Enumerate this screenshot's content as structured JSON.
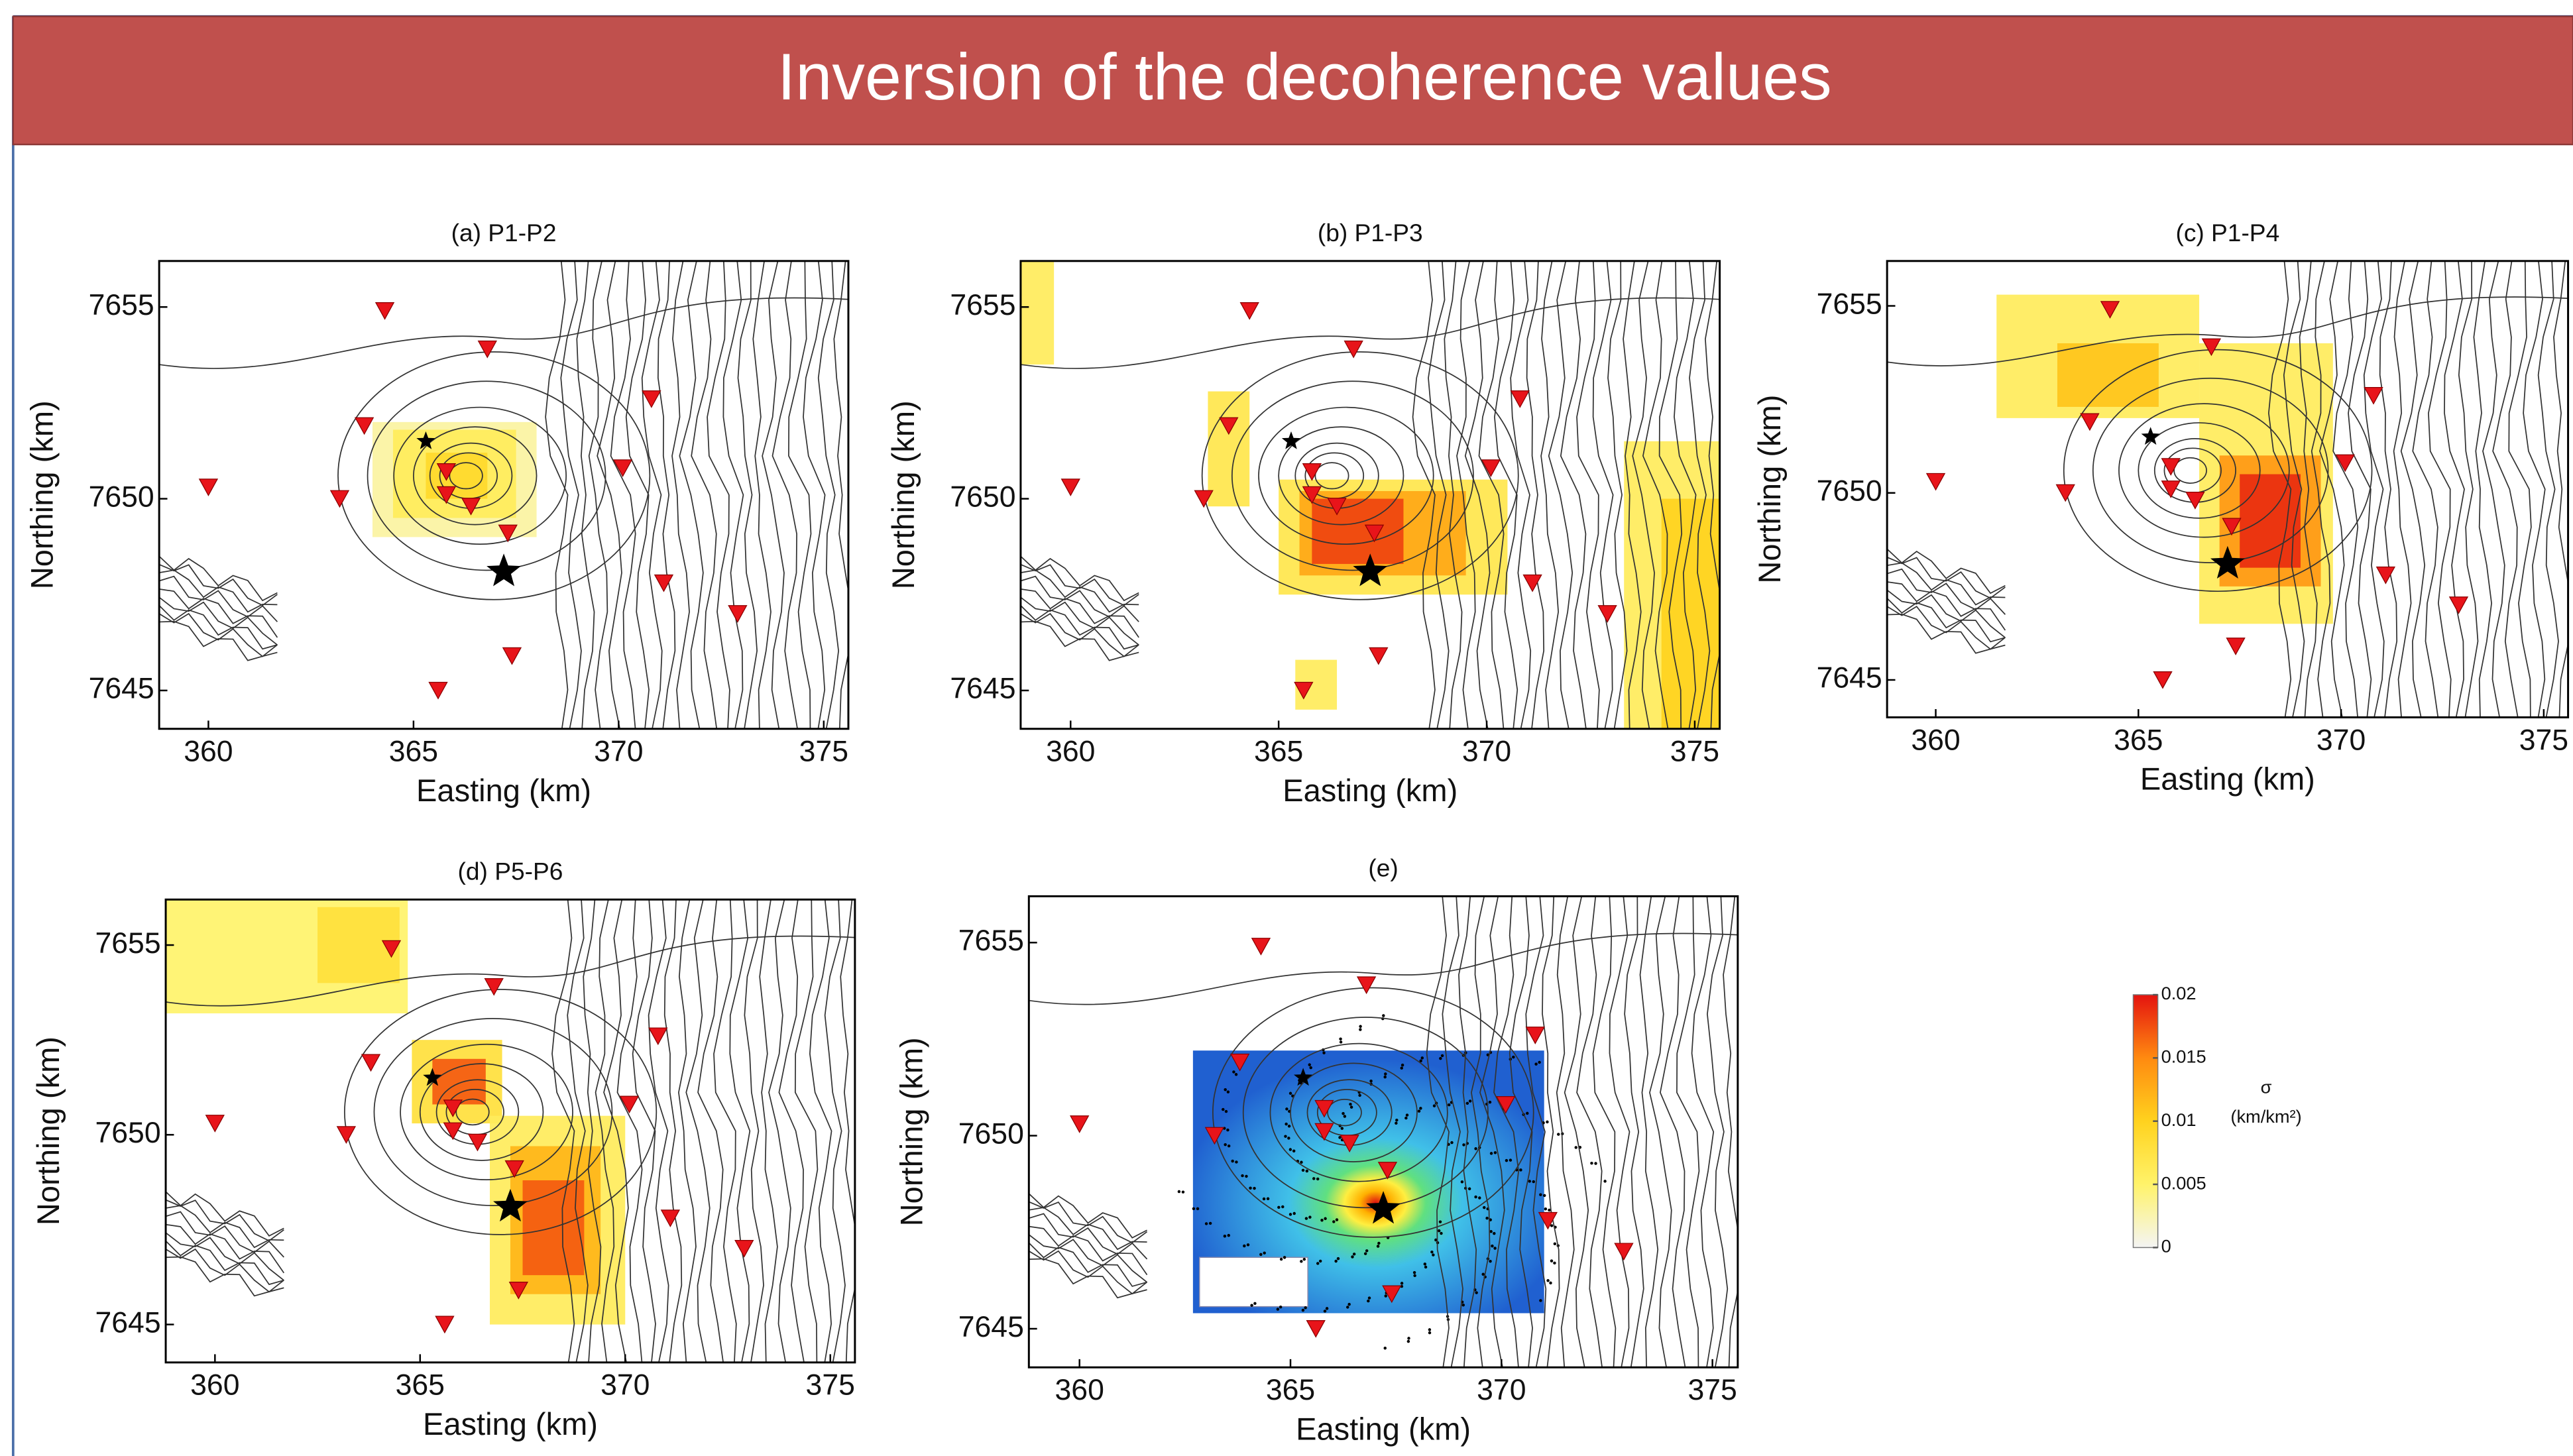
{
  "header": {
    "title": "Inversion of the decoherence values"
  },
  "stations": {
    "x": [
      364.3,
      366.8,
      370.8,
      363.8,
      360.0,
      365.8,
      365.8,
      366.4,
      363.2,
      370.1,
      367.3,
      371.1,
      372.9,
      367.4,
      365.6
    ],
    "y": [
      7654.9,
      7653.9,
      7652.6,
      7651.9,
      7650.3,
      7650.7,
      7650.1,
      7649.8,
      7650.0,
      7650.8,
      7649.1,
      7647.8,
      7647.0,
      7645.9,
      7645.0
    ]
  },
  "events": {
    "x": [
      365.3,
      367.2
    ],
    "y": [
      7651.5,
      7648.1
    ]
  },
  "chart_data": [
    {
      "type": "heatmap",
      "title": "(a) P1-P2",
      "xlabel": "Easting (km)",
      "ylabel": "Northing (km)",
      "xlim": [
        358.8,
        375.6
      ],
      "ylim": [
        7644,
        7656.2
      ],
      "xticks": [
        360,
        365,
        370,
        375
      ],
      "yticks": [
        7645,
        7650,
        7655
      ],
      "blocks": {
        "x0": [
          364,
          364.5,
          365.3
        ],
        "x1": [
          368,
          367.5,
          366.8
        ],
        "y0": [
          7649,
          7649.5,
          7650
        ],
        "y1": [
          7652,
          7651.8,
          7651.2
        ],
        "values": [
          0.003,
          0.006,
          0.009
        ]
      }
    },
    {
      "type": "heatmap",
      "title": "(b) P1-P3",
      "xlabel": "Easting (km)",
      "ylabel": "Northing (km)",
      "xlim": [
        358.8,
        375.6
      ],
      "ylim": [
        7644,
        7656.2
      ],
      "xticks": [
        360,
        365,
        370,
        375
      ],
      "yticks": [
        7645,
        7650,
        7655
      ],
      "blocks": {
        "x0": [
          358.8,
          363.3,
          365,
          365.5,
          365.8,
          373.3,
          374.2,
          365.4
        ],
        "x1": [
          359.6,
          364.3,
          370.5,
          369.5,
          368,
          375.6,
          375.6,
          366.4
        ],
        "y0": [
          7653.5,
          7649.8,
          7647.5,
          7648,
          7648.3,
          7644,
          7644,
          7644.5
        ],
        "y1": [
          7656.2,
          7652.8,
          7650.5,
          7650.2,
          7650,
          7651.5,
          7650,
          7645.8
        ],
        "values": [
          0.006,
          0.007,
          0.007,
          0.013,
          0.018,
          0.006,
          0.01,
          0.006
        ]
      }
    },
    {
      "type": "heatmap",
      "title": "(c) P1-P4",
      "xlabel": "Easting (km)",
      "ylabel": "Northing (km)",
      "xlim": [
        358.8,
        375.6
      ],
      "ylim": [
        7644,
        7656.2
      ],
      "xticks": [
        360,
        365,
        370,
        375
      ],
      "yticks": [
        7645,
        7650,
        7655
      ],
      "blocks": {
        "x0": [
          361.5,
          363,
          366.5,
          367,
          367.5
        ],
        "x1": [
          366.5,
          365.5,
          369.8,
          369.5,
          369
        ],
        "y0": [
          7652,
          7652.3,
          7646.5,
          7647.5,
          7648
        ],
        "y1": [
          7655.3,
          7654,
          7654,
          7651,
          7650.5
        ],
        "values": [
          0.006,
          0.011,
          0.006,
          0.014,
          0.019
        ]
      }
    },
    {
      "type": "heatmap",
      "title": "(d) P5-P6",
      "xlabel": "Easting (km)",
      "ylabel": "Northing (km)",
      "xlim": [
        358.8,
        375.6
      ],
      "ylim": [
        7644,
        7656.2
      ],
      "xticks": [
        360,
        365,
        370,
        375
      ],
      "yticks": [
        7645,
        7650,
        7655
      ],
      "blocks": {
        "x0": [
          358.8,
          362.5,
          364.8,
          365.3,
          366.7,
          367.2,
          367.5
        ],
        "x1": [
          364.7,
          364.5,
          367,
          366.6,
          370,
          369.4,
          369
        ],
        "y0": [
          7653.2,
          7654,
          7650.3,
          7650.8,
          7645,
          7645.8,
          7646.3
        ],
        "y1": [
          7656.2,
          7656,
          7652.5,
          7652,
          7650.5,
          7649.7,
          7648.8
        ],
        "values": [
          0.005,
          0.008,
          0.008,
          0.017,
          0.006,
          0.012,
          0.017
        ]
      }
    },
    {
      "type": "heatmap",
      "title": "(e)",
      "xlabel": "Easting (km)",
      "ylabel": "Northing (km)",
      "xlim": [
        358.8,
        375.6
      ],
      "ylim": [
        7644,
        7656.2
      ],
      "xticks": [
        360,
        365,
        370,
        375
      ],
      "yticks": [
        7645,
        7650,
        7655
      ]
    },
    {
      "type": "colorbar",
      "label": "σ",
      "unit": "(km/km²)",
      "ylim": [
        0,
        0.02
      ],
      "yticks": [
        0,
        0.005,
        0.01,
        0.015,
        0.02
      ]
    }
  ]
}
